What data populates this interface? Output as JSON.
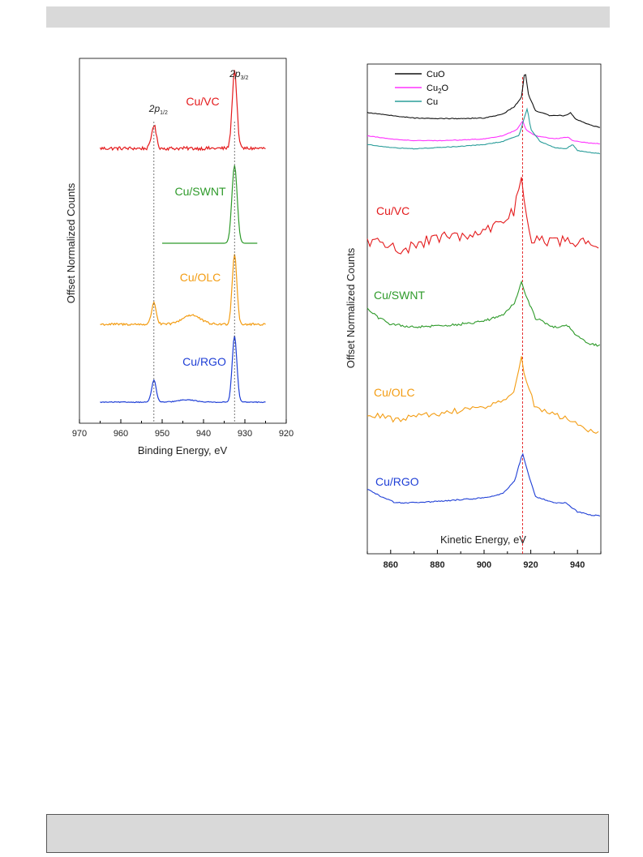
{
  "header": {
    "text": ""
  },
  "footer": {
    "text": ""
  },
  "chart_data": [
    {
      "type": "line",
      "title": "",
      "xlabel": "Binding Energy, eV",
      "ylabel": "Offset Normalized Counts",
      "xlim": [
        970,
        920
      ],
      "x_reversed": true,
      "xticks": [
        970,
        960,
        950,
        940,
        930,
        920
      ],
      "grid": false,
      "annotations": [
        {
          "label_main": "2p",
          "label_sub": "1/2",
          "x": 952
        },
        {
          "label_main": "2p",
          "label_sub": "3/2",
          "x": 932.5
        }
      ],
      "series": [
        {
          "name": "Cu/VC",
          "color": "#e41a1c",
          "x_range": [
            965,
            925
          ],
          "offset": 3,
          "noise": 0.09,
          "peaks": [
            {
              "x": 952,
              "height": 0.3,
              "width": 0.8
            },
            {
              "x": 932.5,
              "height": 1.0,
              "width": 0.8
            }
          ],
          "bumps": []
        },
        {
          "name": "Cu/SWNT",
          "color": "#2e9a2a",
          "x_range": [
            950,
            927
          ],
          "offset": 2,
          "noise": 0.0,
          "peaks": [
            {
              "x": 932.5,
              "height": 1.0,
              "width": 0.9
            }
          ],
          "bumps": []
        },
        {
          "name": "Cu/OLC",
          "color": "#f39c12",
          "x_range": [
            965,
            925
          ],
          "offset": 1,
          "noise": 0.06,
          "peaks": [
            {
              "x": 952,
              "height": 0.28,
              "width": 0.8
            },
            {
              "x": 932.5,
              "height": 0.9,
              "width": 0.8
            }
          ],
          "bumps": [
            {
              "x": 943,
              "height": 0.12,
              "width": 3.0
            }
          ]
        },
        {
          "name": "Cu/RGO",
          "color": "#1f3fd6",
          "x_range": [
            965,
            925
          ],
          "offset": 0,
          "noise": 0.02,
          "peaks": [
            {
              "x": 952,
              "height": 0.28,
              "width": 0.8
            },
            {
              "x": 932.5,
              "height": 0.85,
              "width": 0.8
            }
          ],
          "bumps": [
            {
              "x": 944,
              "height": 0.03,
              "width": 3.0
            }
          ]
        }
      ]
    },
    {
      "type": "line",
      "title": "",
      "xlabel": "Kinetic Energy, eV",
      "ylabel": "Offset Normalized Counts",
      "xlim": [
        850,
        950
      ],
      "xticks": [
        860,
        880,
        900,
        920,
        940
      ],
      "grid": false,
      "legend": {
        "position": "top-left",
        "entries": [
          {
            "main": "CuO",
            "sub": "",
            "tail": "",
            "color": "#111111"
          },
          {
            "main": "Cu",
            "sub": "2",
            "tail": "O",
            "color": "#ff33ff"
          },
          {
            "main": "Cu",
            "sub": "",
            "tail": "",
            "color": "#2a9d9a"
          }
        ]
      },
      "reference_line_x": 916.5,
      "series": [
        {
          "name": "CuO",
          "color": "#111111",
          "labeled": false,
          "offset": 5.68,
          "noise": 0.008,
          "points": [
            [
              850,
              0.15
            ],
            [
              860,
              0.1
            ],
            [
              870,
              0.06
            ],
            [
              880,
              0.05
            ],
            [
              890,
              0.05
            ],
            [
              900,
              0.06
            ],
            [
              908,
              0.12
            ],
            [
              913,
              0.25
            ],
            [
              916,
              0.4
            ],
            [
              917.5,
              0.85
            ],
            [
              919,
              0.45
            ],
            [
              922,
              0.18
            ],
            [
              928,
              0.1
            ],
            [
              932,
              0.1
            ],
            [
              935,
              0.1
            ],
            [
              937,
              0.15
            ],
            [
              939,
              0.05
            ],
            [
              945,
              -0.05
            ],
            [
              950,
              -0.1
            ]
          ]
        },
        {
          "name": "Cu2O",
          "color": "#ff33ff",
          "labeled": false,
          "offset": 5.38,
          "noise": 0.006,
          "points": [
            [
              850,
              0.1
            ],
            [
              860,
              0.05
            ],
            [
              870,
              0.02
            ],
            [
              880,
              0.02
            ],
            [
              890,
              0.03
            ],
            [
              900,
              0.05
            ],
            [
              908,
              0.1
            ],
            [
              914,
              0.2
            ],
            [
              916.5,
              0.35
            ],
            [
              918,
              0.2
            ],
            [
              922,
              0.1
            ],
            [
              930,
              0.05
            ],
            [
              936,
              0.08
            ],
            [
              938,
              0.02
            ],
            [
              945,
              -0.02
            ],
            [
              950,
              -0.03
            ]
          ]
        },
        {
          "name": "Cu",
          "color": "#2a9d9a",
          "labeled": false,
          "offset": 5.23,
          "noise": 0.006,
          "points": [
            [
              850,
              0.05
            ],
            [
              860,
              0.0
            ],
            [
              870,
              -0.02
            ],
            [
              880,
              0.0
            ],
            [
              890,
              0.02
            ],
            [
              900,
              0.05
            ],
            [
              908,
              0.1
            ],
            [
              915,
              0.2
            ],
            [
              918.5,
              0.65
            ],
            [
              920,
              0.3
            ],
            [
              924,
              0.1
            ],
            [
              930,
              0.0
            ],
            [
              935,
              -0.02
            ],
            [
              938,
              0.05
            ],
            [
              940,
              -0.05
            ],
            [
              945,
              -0.08
            ],
            [
              950,
              -0.1
            ]
          ]
        },
        {
          "name": "Cu/VC",
          "color": "#e41a1c",
          "labeled": true,
          "offset": 3.2,
          "noise": 0.12,
          "points": [
            [
              850,
              0.05
            ],
            [
              858,
              0.0
            ],
            [
              866,
              -0.12
            ],
            [
              872,
              0.0
            ],
            [
              880,
              0.08
            ],
            [
              890,
              0.12
            ],
            [
              900,
              0.2
            ],
            [
              908,
              0.35
            ],
            [
              913,
              0.55
            ],
            [
              916,
              1.05
            ],
            [
              918,
              0.5
            ],
            [
              920,
              0.1
            ],
            [
              925,
              0.05
            ],
            [
              935,
              0.05
            ],
            [
              942,
              0.0
            ],
            [
              950,
              -0.05
            ]
          ]
        },
        {
          "name": "Cu/SWNT",
          "color": "#2e9a2a",
          "labeled": true,
          "offset": 2.25,
          "noise": 0.025,
          "points": [
            [
              850,
              0.2
            ],
            [
              855,
              0.05
            ],
            [
              860,
              -0.05
            ],
            [
              870,
              -0.1
            ],
            [
              880,
              -0.08
            ],
            [
              890,
              -0.05
            ],
            [
              900,
              0.0
            ],
            [
              908,
              0.1
            ],
            [
              913,
              0.3
            ],
            [
              916,
              0.65
            ],
            [
              918,
              0.4
            ],
            [
              922,
              0.05
            ],
            [
              930,
              -0.1
            ],
            [
              936,
              -0.08
            ],
            [
              940,
              -0.25
            ],
            [
              945,
              -0.38
            ],
            [
              950,
              -0.4
            ]
          ]
        },
        {
          "name": "Cu/OLC",
          "color": "#f39c12",
          "labeled": true,
          "offset": 1.2,
          "noise": 0.06,
          "points": [
            [
              850,
              0.0
            ],
            [
              856,
              -0.05
            ],
            [
              862,
              -0.1
            ],
            [
              870,
              -0.05
            ],
            [
              880,
              0.0
            ],
            [
              890,
              0.05
            ],
            [
              900,
              0.1
            ],
            [
              908,
              0.2
            ],
            [
              913,
              0.4
            ],
            [
              916,
              0.9
            ],
            [
              918,
              0.5
            ],
            [
              922,
              0.1
            ],
            [
              930,
              0.0
            ],
            [
              936,
              -0.1
            ],
            [
              942,
              -0.25
            ],
            [
              950,
              -0.3
            ]
          ]
        },
        {
          "name": "Cu/RGO",
          "color": "#1f3fd6",
          "labeled": true,
          "offset": 0.05,
          "noise": 0.012,
          "points": [
            [
              850,
              0.22
            ],
            [
              856,
              0.1
            ],
            [
              862,
              0.0
            ],
            [
              870,
              0.0
            ],
            [
              880,
              0.02
            ],
            [
              890,
              0.05
            ],
            [
              900,
              0.08
            ],
            [
              908,
              0.15
            ],
            [
              913,
              0.35
            ],
            [
              916.5,
              0.82
            ],
            [
              918,
              0.6
            ],
            [
              922,
              0.1
            ],
            [
              930,
              0.0
            ],
            [
              935,
              0.0
            ],
            [
              940,
              -0.15
            ],
            [
              945,
              -0.2
            ],
            [
              950,
              -0.22
            ]
          ]
        }
      ]
    }
  ]
}
